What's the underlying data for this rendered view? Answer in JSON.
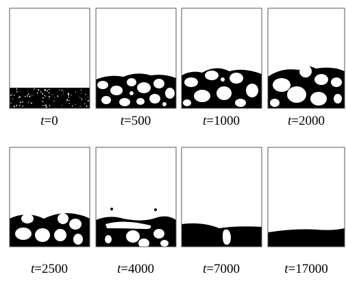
{
  "symbol": "t",
  "panels": [
    {
      "label": "=0"
    },
    {
      "label": "=500"
    },
    {
      "label": "=1000"
    },
    {
      "label": "=2000"
    },
    {
      "label": "=2500"
    },
    {
      "label": "=4000"
    },
    {
      "label": "=7000"
    },
    {
      "label": "=17000"
    }
  ]
}
